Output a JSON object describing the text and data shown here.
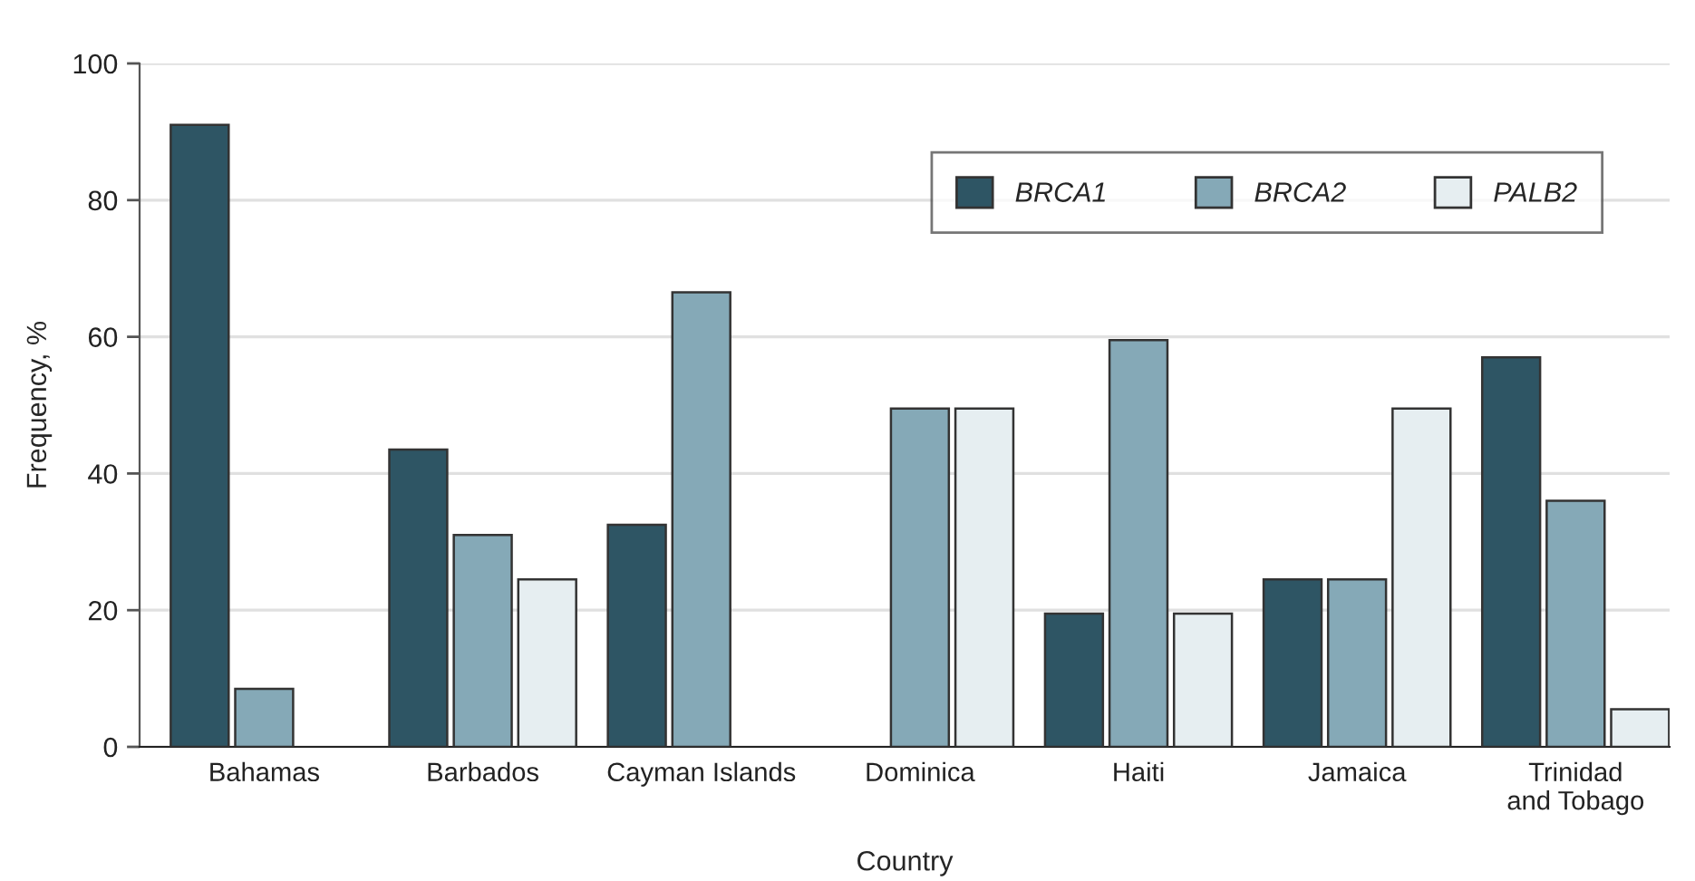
{
  "chart_data": {
    "type": "bar",
    "xlabel": "Country",
    "ylabel": "Frequency, %",
    "categories": [
      "Bahamas",
      "Barbados",
      "Cayman Islands",
      "Dominica",
      "Haiti",
      "Jamaica",
      "Trinidad\nand Tobago"
    ],
    "series": [
      {
        "name": "BRCA1",
        "color": "#2e5564",
        "values": [
          91,
          43.5,
          32.5,
          null,
          19.5,
          24.5,
          57
        ]
      },
      {
        "name": "BRCA2",
        "color": "#85a9b7",
        "values": [
          8.5,
          31,
          66.5,
          49.5,
          59.5,
          24.5,
          36
        ]
      },
      {
        "name": "PALB2",
        "color": "#e6eef1",
        "values": [
          null,
          24.5,
          null,
          49.5,
          19.5,
          49.5,
          5.5
        ]
      }
    ],
    "ylim": [
      0,
      100
    ],
    "yticks": [
      0,
      20,
      40,
      60,
      80,
      100
    ],
    "grid": "y",
    "legend": "top right"
  }
}
